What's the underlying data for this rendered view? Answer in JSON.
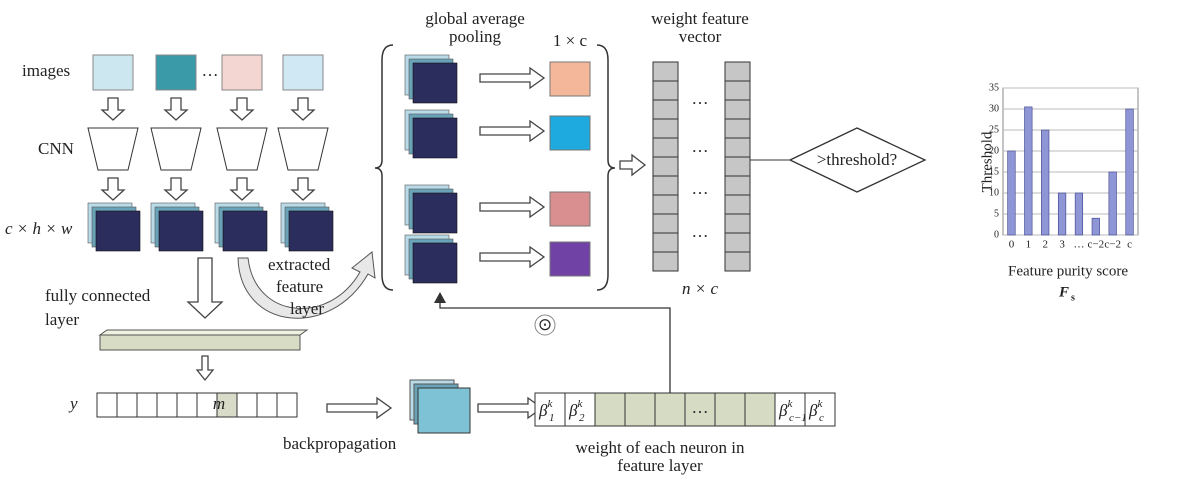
{
  "left": {
    "images": "images",
    "ellipsis": "…",
    "cnn": "CNN",
    "feature_dims": "c × h × w",
    "fc_line1": "fully connected",
    "fc_line2": "layer",
    "y": "y",
    "m": "m",
    "backprop": "backpropagation",
    "extracted": [
      "extracted",
      "feature",
      "layer"
    ]
  },
  "pooling": {
    "title": [
      "global average",
      "pooling"
    ],
    "dims": "1 × c",
    "odot": "⊙"
  },
  "vector": {
    "title": [
      "weight feature",
      "vector"
    ],
    "ellipsis": "…",
    "dims": "n × c",
    "threshold": ">threshold?"
  },
  "weights": {
    "cells": [
      {
        "base": "β",
        "sub": "1",
        "sup": "k"
      },
      {
        "base": "β",
        "sub": "2",
        "sup": "k"
      },
      {
        "base": "β",
        "sub": "c−1",
        "sup": "k"
      },
      {
        "base": "β",
        "sub": "c",
        "sup": "k"
      }
    ],
    "ellipsis": "…",
    "caption": [
      "weight of each neuron in",
      "feature layer"
    ]
  },
  "chart_data": {
    "type": "bar",
    "y_label": "Threshold",
    "x_label": "Feature purity score",
    "x_symbol": "F",
    "x_symbol_sub": "s",
    "categories": [
      "0",
      "1",
      "2",
      "3",
      "…",
      "c−2",
      "c−2",
      "c"
    ],
    "values": [
      20,
      30.5,
      25,
      10,
      10,
      4,
      15,
      30
    ],
    "color": "#8f96d6",
    "ylim": [
      0,
      35
    ],
    "yticks": [
      0,
      5,
      10,
      15,
      20,
      25,
      30,
      35
    ]
  }
}
